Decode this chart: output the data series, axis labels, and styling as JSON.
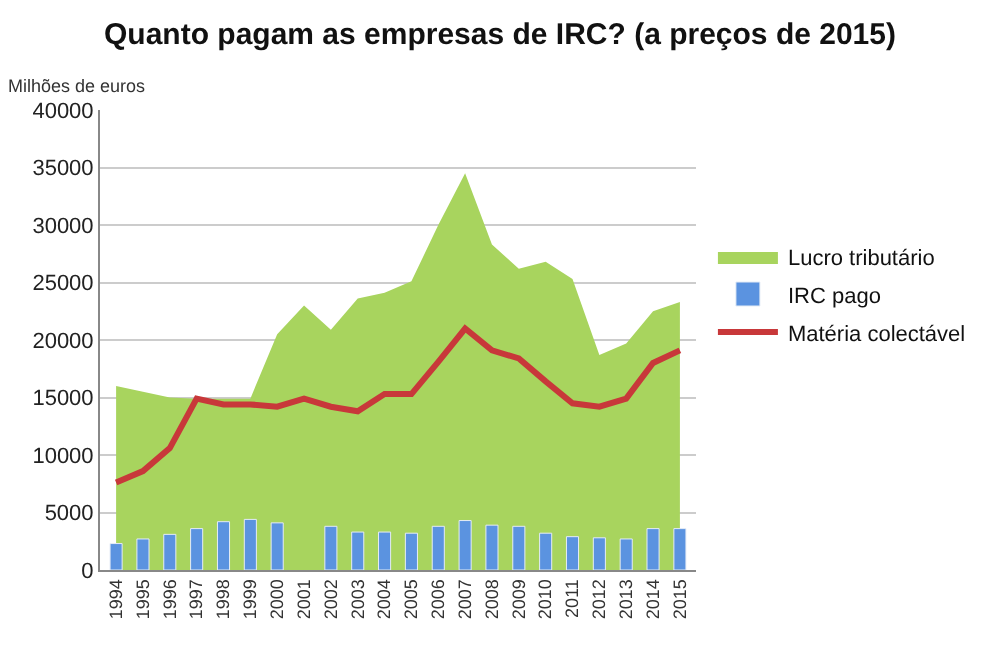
{
  "chart_data": {
    "type": "area",
    "title": "Quanto pagam as empresas de IRC? (a preços de 2015)",
    "ylabel": "Milhões de euros",
    "categories": [
      "1994",
      "1995",
      "1996",
      "1997",
      "1998",
      "1999",
      "2000",
      "2001",
      "2002",
      "2003",
      "2004",
      "2005",
      "2006",
      "2007",
      "2008",
      "2009",
      "2010",
      "2011",
      "2012",
      "2013",
      "2014",
      "2015"
    ],
    "series": [
      {
        "name": "Lucro tributário",
        "color": "#a8d45e",
        "values": [
          16000,
          15500,
          15000,
          14900,
          14900,
          14900,
          20500,
          23000,
          20900,
          23600,
          24100,
          25100,
          30000,
          34500,
          28300,
          26200,
          26800,
          25300,
          18700,
          19700,
          22500,
          23300
        ]
      },
      {
        "name": "IRC pago",
        "type": "bar",
        "color": "#5b93e0",
        "values": [
          2300,
          2700,
          3100,
          3600,
          4200,
          4400,
          4100,
          null,
          3800,
          3300,
          3300,
          3200,
          3800,
          4300,
          3900,
          3800,
          3200,
          2900,
          2800,
          2700,
          3600,
          3600
        ]
      },
      {
        "name": "Matéria colectável",
        "type": "line",
        "color": "#c8383a",
        "values": [
          7600,
          8600,
          10600,
          14900,
          14400,
          14400,
          14200,
          14900,
          14200,
          13800,
          15300,
          15300,
          18100,
          21000,
          19100,
          18400,
          16400,
          14500,
          14200,
          14900,
          18000,
          19100
        ]
      }
    ],
    "ylim": [
      0,
      40000
    ],
    "yticks": [
      0,
      5000,
      10000,
      15000,
      20000,
      25000,
      30000,
      35000,
      40000
    ],
    "grid": "y",
    "legend": "right"
  }
}
